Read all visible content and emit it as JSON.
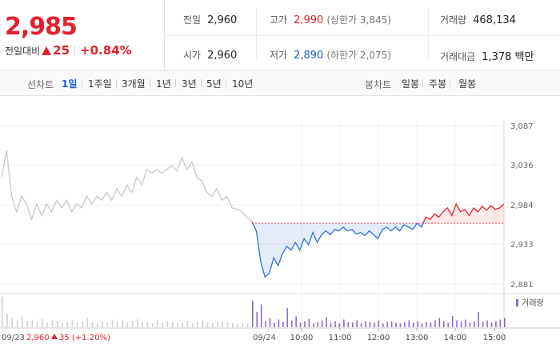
{
  "quote": {
    "price": "2,985",
    "change_label": "전일대비",
    "change_amount": "25",
    "change_pct": "+0.84%"
  },
  "stats": {
    "prev_close": {
      "label": "전일",
      "value": "2,960"
    },
    "open": {
      "label": "시가",
      "value": "2,960"
    },
    "high": {
      "label": "고가",
      "value": "2,990",
      "limit_label": "(상한가 3,845)"
    },
    "low": {
      "label": "저가",
      "value": "2,890",
      "limit_label": "(하한가 2,075)"
    },
    "volume": {
      "label": "거래량",
      "value": "468,134"
    },
    "turnover": {
      "label": "거래대금",
      "value": "1,378 백만"
    }
  },
  "line_tabs": {
    "label": "선차트",
    "items": [
      "1일",
      "1주일",
      "3개월",
      "1년",
      "3년",
      "5년",
      "10년"
    ],
    "active": 0
  },
  "candle_tabs": {
    "label": "봉차트",
    "items": [
      "일봉",
      "주봉",
      "월봉"
    ]
  },
  "chart_data": {
    "type": "line",
    "y_ticks": [
      "3,087",
      "3,036",
      "2,984",
      "2,933",
      "2,881"
    ],
    "ylim": [
      2881,
      3087
    ],
    "baseline": 2960,
    "x_ticks": [
      "10:00",
      "11:00",
      "12:00",
      "13:00",
      "14:00",
      "15:00"
    ],
    "prev_day": {
      "date": "09/23",
      "close_info": "2,960",
      "change_info": "35 (+1.20%)",
      "values": [
        3020,
        3055,
        2995,
        2975,
        2995,
        2985,
        2965,
        2985,
        2970,
        2985,
        2975,
        2990,
        2980,
        2990,
        2975,
        2985,
        2980,
        2995,
        2985,
        2995,
        2990,
        3000,
        2990,
        3005,
        2995,
        3010,
        3000,
        3020,
        3010,
        3030,
        3025,
        3030,
        3025,
        3030,
        3035,
        3028,
        3045,
        3030,
        3040,
        3020,
        3015,
        3000,
        2995,
        3005,
        2990,
        2995,
        2980,
        2978,
        2975,
        2968,
        2962
      ]
    },
    "today": {
      "date": "09/24",
      "values": [
        2962,
        2950,
        2910,
        2890,
        2895,
        2915,
        2905,
        2920,
        2930,
        2925,
        2935,
        2925,
        2940,
        2932,
        2948,
        2935,
        2945,
        2950,
        2945,
        2952,
        2950,
        2955,
        2950,
        2952,
        2946,
        2948,
        2944,
        2950,
        2945,
        2940,
        2952,
        2955,
        2950,
        2955,
        2950,
        2958,
        2955,
        2952,
        2960,
        2955,
        2968,
        2965,
        2972,
        2968,
        2975,
        2980,
        2970,
        2985,
        2975,
        2978,
        2970,
        2980,
        2975,
        2982,
        2977,
        2983,
        2978,
        2980,
        2985
      ]
    },
    "volume": {
      "legend": "거래량",
      "prev_day": [
        40,
        18,
        12,
        9,
        14,
        8,
        10,
        7,
        11,
        6,
        9,
        8,
        5,
        7,
        9,
        6,
        8,
        12,
        7,
        5,
        8,
        6,
        10,
        7,
        9,
        6,
        8,
        11,
        6,
        7,
        5,
        9,
        6,
        8,
        7,
        5,
        6,
        8,
        5,
        7,
        9,
        6,
        5,
        7,
        8,
        6,
        5,
        4,
        6,
        5,
        7
      ],
      "today": [
        35,
        20,
        30,
        8,
        12,
        6,
        10,
        7,
        25,
        9,
        14,
        6,
        8,
        11,
        5,
        7,
        9,
        13,
        6,
        8,
        5,
        10,
        7,
        6,
        9,
        5,
        8,
        7,
        6,
        9,
        5,
        7,
        8,
        6,
        5,
        7,
        9,
        6,
        8,
        5,
        7,
        6,
        9,
        12,
        8,
        6,
        15,
        9,
        7,
        10,
        6,
        8,
        20,
        7,
        9,
        6,
        8,
        10,
        12
      ]
    }
  }
}
